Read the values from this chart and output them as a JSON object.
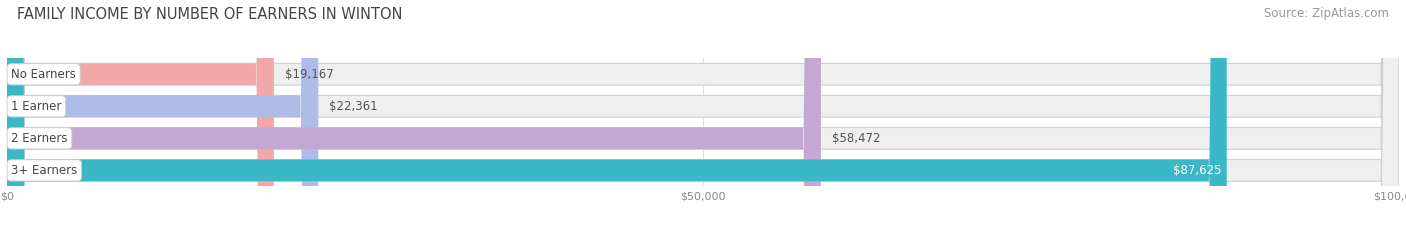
{
  "title": "FAMILY INCOME BY NUMBER OF EARNERS IN WINTON",
  "source": "Source: ZipAtlas.com",
  "categories": [
    "No Earners",
    "1 Earner",
    "2 Earners",
    "3+ Earners"
  ],
  "values": [
    19167,
    22361,
    58472,
    87625
  ],
  "bar_colors": [
    "#f2a8a8",
    "#b0bce8",
    "#c4a8d4",
    "#3ab8c5"
  ],
  "label_colors": [
    "#555555",
    "#555555",
    "#555555",
    "#ffffff"
  ],
  "value_labels": [
    "$19,167",
    "$22,361",
    "$58,472",
    "$87,625"
  ],
  "value_inside": [
    false,
    false,
    false,
    true
  ],
  "xlim": [
    0,
    100000
  ],
  "xticks": [
    0,
    50000,
    100000
  ],
  "xticklabels": [
    "$0",
    "$50,000",
    "$100,000"
  ],
  "background_color": "#ffffff",
  "bar_bg_color": "#efefef",
  "bar_border_color": "#d0d0d0",
  "title_fontsize": 10.5,
  "source_fontsize": 8.5,
  "label_fontsize": 8.5,
  "value_fontsize": 8.5
}
